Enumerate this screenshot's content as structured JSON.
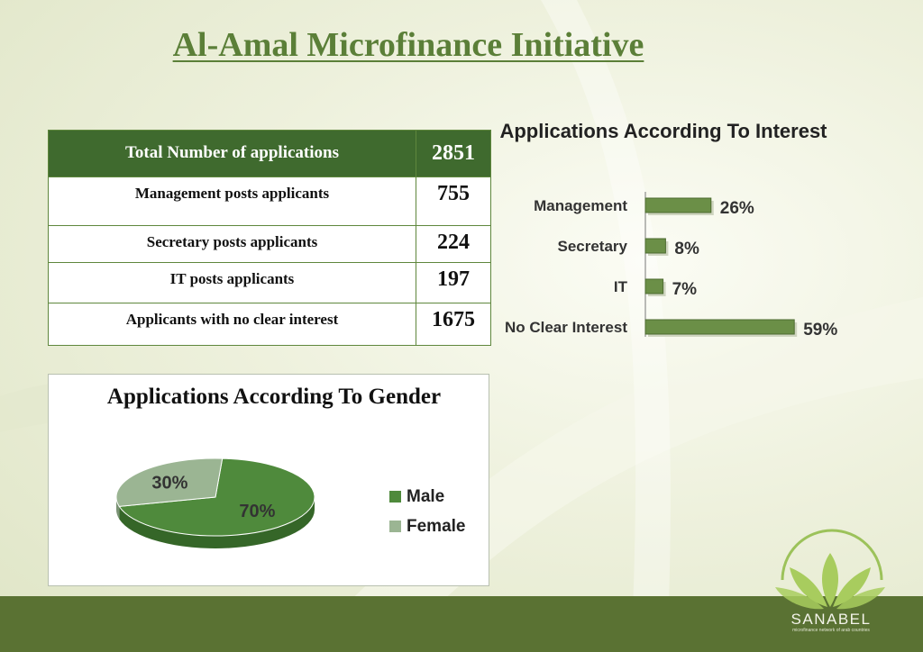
{
  "slide": {
    "title": "Al-Amal Microfinance Initiative"
  },
  "table": {
    "header": {
      "label": "Total Number of applications",
      "value": "2851"
    },
    "rows": [
      {
        "label": "Management posts applicants",
        "value": "755"
      },
      {
        "label": "Secretary posts applicants",
        "value": "224"
      },
      {
        "label": "IT posts applicants",
        "value": "197"
      },
      {
        "label": "Applicants with no clear interest",
        "value": "1675"
      }
    ]
  },
  "colors": {
    "dark_green": "#3f6a2e",
    "bar_green": "#6b8f47",
    "male": "#4f8a3c",
    "female": "#9bb593",
    "footer": "#5a7233"
  },
  "logo": {
    "name": "SANABEL",
    "tagline": "microfinance network of arab countries"
  },
  "chart_data": [
    {
      "type": "bar",
      "orientation": "horizontal",
      "title": "Applications According To Interest",
      "categories": [
        "Management",
        "Secretary",
        "IT",
        "No Clear Interest"
      ],
      "values": [
        26,
        8,
        7,
        59
      ],
      "data_labels": [
        "26%",
        "8%",
        "7%",
        "59%"
      ],
      "xlim": [
        0,
        100
      ],
      "grid": false,
      "legend": "none"
    },
    {
      "type": "pie",
      "title": "Applications According To Gender",
      "categories": [
        "Male",
        "Female"
      ],
      "values": [
        70,
        30
      ],
      "data_labels": [
        "70%",
        "30%"
      ],
      "legend": "right"
    }
  ]
}
